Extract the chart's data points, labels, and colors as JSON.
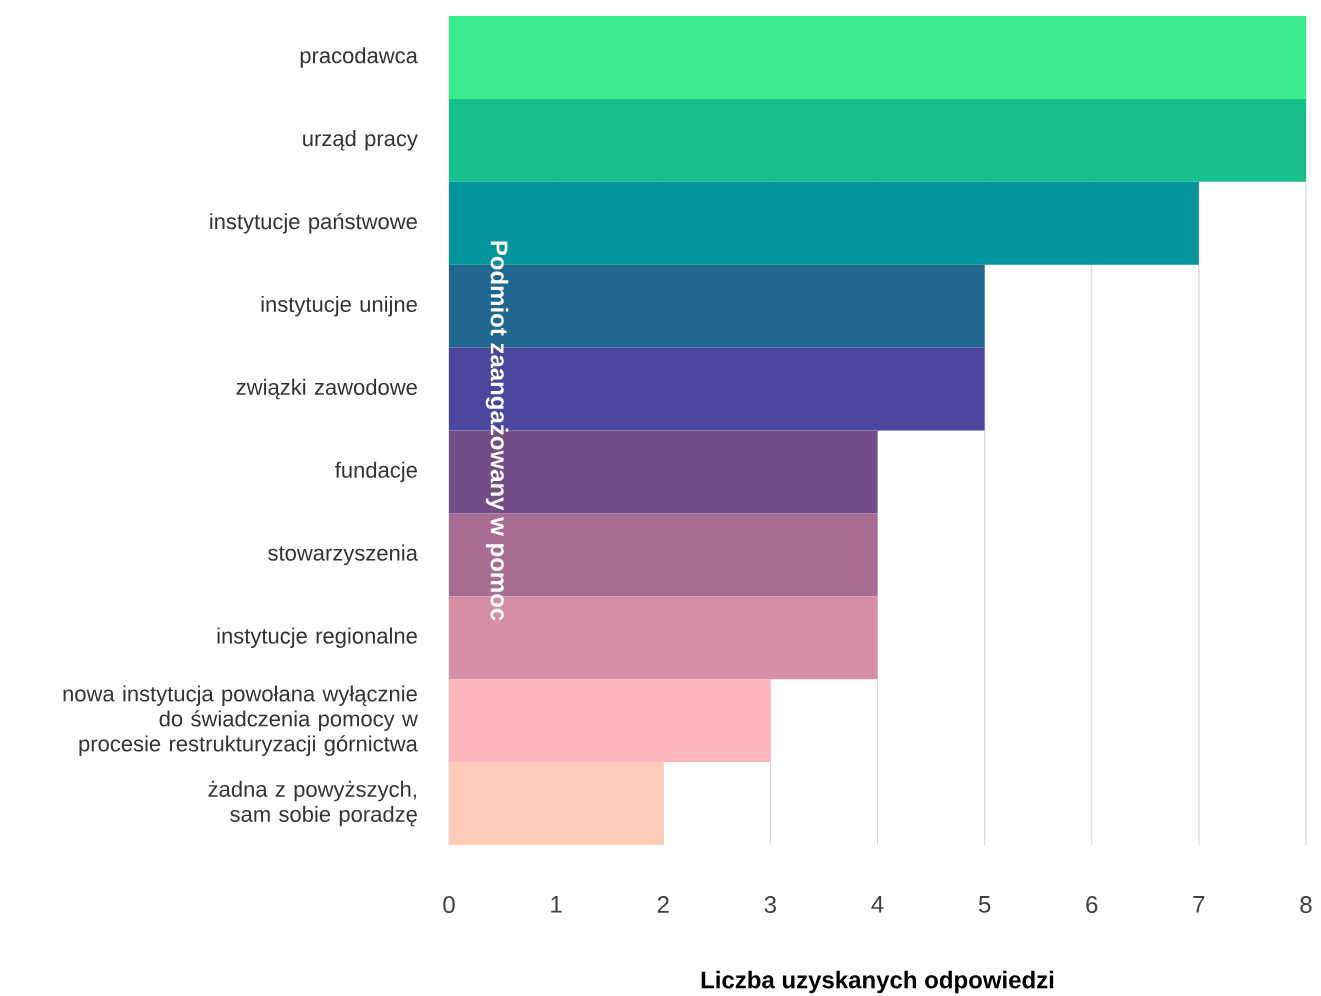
{
  "chart_data": {
    "type": "bar",
    "orientation": "horizontal",
    "xlabel": "Liczba uzyskanych odpowiedzi",
    "ylabel": "Podmiot zaangażowany w pomoc",
    "categories": [
      "pracodawca",
      "urząd pracy",
      "instytucje państwowe",
      "instytucje unijne",
      "związki zawodowe",
      "fundacje",
      "stowarzyszenia",
      "instytucje regionalne",
      "nowa instytucja powołana wyłącznie do świadczenia pomocy w procesie restrukturyzacji górnictwa",
      "żadna z powyższych, sam sobie poradzę"
    ],
    "values": [
      8,
      8,
      7,
      5,
      5,
      4,
      4,
      4,
      3,
      2
    ],
    "colors": [
      "#3beb91",
      "#19bf8a",
      "#00939b",
      "#1f678c",
      "#4a469d",
      "#734e86",
      "#a66c93",
      "#d68fa9",
      "#feb8bd",
      "#ffccb8"
    ],
    "xlim": [
      0,
      8
    ],
    "xticks": [
      0,
      1,
      2,
      3,
      4,
      5,
      6,
      7,
      8
    ],
    "grid": "x"
  }
}
